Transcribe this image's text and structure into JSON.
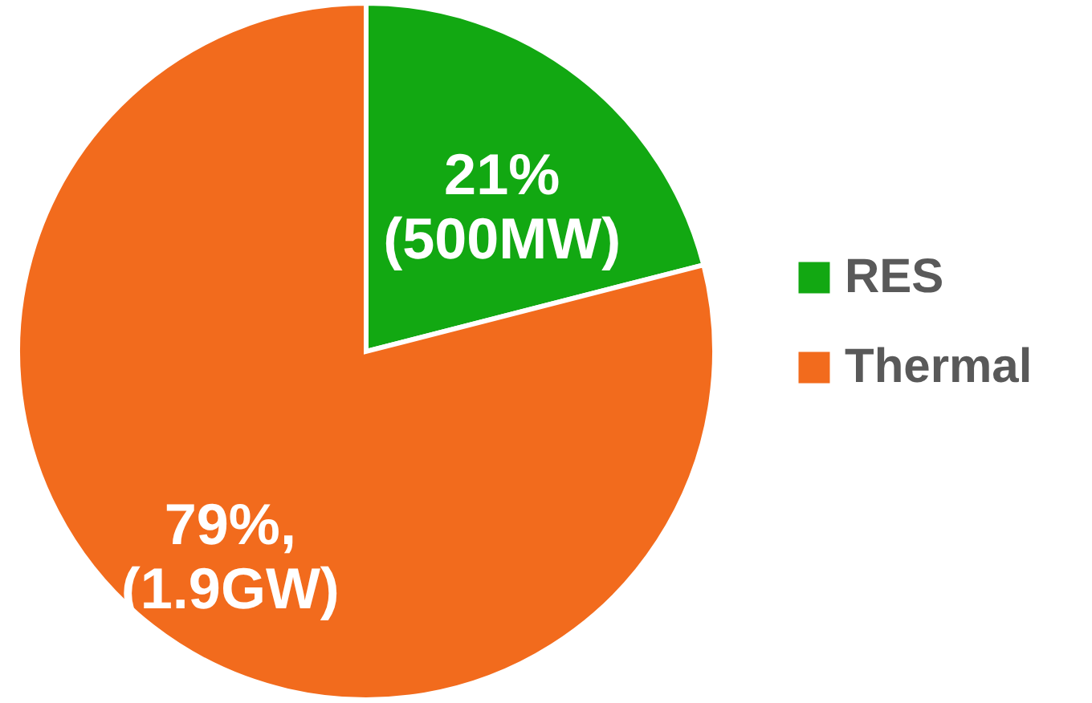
{
  "chart_data": {
    "type": "pie",
    "categories": [
      "RES",
      "Thermal"
    ],
    "values": [
      21,
      79
    ],
    "colors": [
      "#12a812",
      "#f26b1d"
    ],
    "value_labels": [
      "21%\n(500MW)",
      "79%,\n(1.9GW)"
    ],
    "legend": "right"
  }
}
